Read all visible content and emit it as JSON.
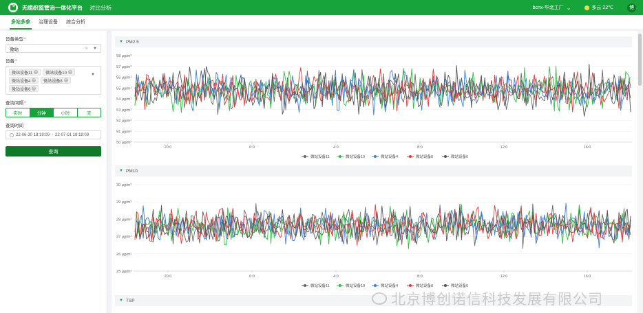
{
  "header": {
    "app_title": "无组织监管治一体化平台",
    "nav_link": "对比分析",
    "factory": "bcnx-华北工厂",
    "weather": "多云 22℃",
    "avatar_text": "博"
  },
  "tabs": [
    {
      "label": "多站多参",
      "active": true
    },
    {
      "label": "治理设备",
      "active": false
    },
    {
      "label": "综合分析",
      "active": false
    }
  ],
  "sidebar": {
    "device_type_label": "设备类型",
    "device_type_value": "微站",
    "device_label": "设备",
    "chips": [
      "微站设备11",
      "微站设备10",
      "微站设备4",
      "微站设备8",
      "微站设备6"
    ],
    "interval_label": "查询间隔",
    "intervals": [
      {
        "label": "实时",
        "active": false
      },
      {
        "label": "分钟",
        "active": true
      },
      {
        "label": "小时",
        "active": false
      },
      {
        "label": "天",
        "active": false
      }
    ],
    "time_label": "查询时间",
    "time_start": "22-06-30 18:19:09",
    "time_sep": "-",
    "time_end": "22-07-01 18:19:09",
    "query_button": "查询"
  },
  "panels": [
    {
      "title": "PM2.5"
    },
    {
      "title": "PM10"
    },
    {
      "title": "TSP"
    }
  ],
  "watermark": "北京博创诺信科技发展有限公司",
  "colors": {
    "primary": "#17a43b",
    "dark_green": "#0e7a2a",
    "series": [
      "#666666",
      "#2fbf3f",
      "#3a7fe0",
      "#e53935",
      "#555555"
    ]
  },
  "chart_data": [
    {
      "type": "line",
      "title": "PM2.5",
      "ylim": [
        50,
        58
      ],
      "yticks": [
        "50 μg/m³",
        "51 μg/m³",
        "52 μg/m³",
        "53 μg/m³",
        "54 μg/m³",
        "55 μg/m³",
        "56 μg/m³",
        "57 μg/m³",
        "58 μg/m³"
      ],
      "xticks": [
        "20:0",
        "0:0",
        "4:0",
        "8:0",
        "12:0",
        "16:0"
      ],
      "legend": [
        "微站设备11",
        "微站设备10",
        "微站设备4",
        "微站设备8",
        "微站设备6"
      ],
      "series_center": 54.8,
      "series_spread": 1.2,
      "legend_position": "bottom"
    },
    {
      "type": "line",
      "title": "PM10",
      "ylim": [
        25,
        30
      ],
      "yticks": [
        "25 μg/m³",
        "26 μg/m³",
        "27 μg/m³",
        "28 μg/m³",
        "29 μg/m³",
        "30 μg/m³"
      ],
      "xticks": [
        "20:0",
        "0:0",
        "4:0",
        "8:0",
        "12:0",
        "16:0"
      ],
      "legend": [
        "微站设备11",
        "微站设备10",
        "微站设备4",
        "微站设备8",
        "微站设备6"
      ],
      "series_center": 27.6,
      "series_spread": 0.7,
      "legend_position": "bottom"
    }
  ]
}
